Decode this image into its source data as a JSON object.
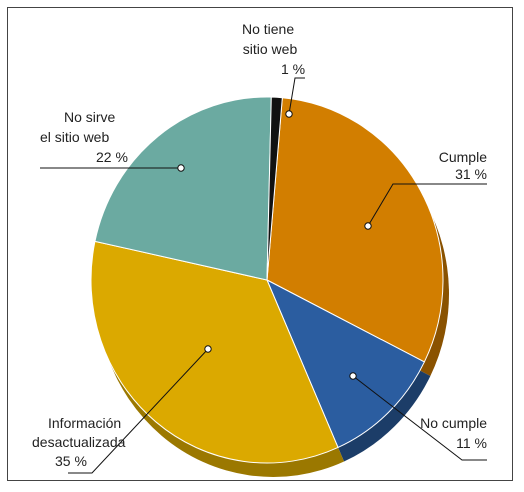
{
  "chart_data": {
    "type": "pie",
    "title": "",
    "slices": [
      {
        "label_lines": [
          "Cumple"
        ],
        "pct_label": "31 %",
        "value": 31,
        "color": "#D27E00",
        "dark": "#8A5200"
      },
      {
        "label_lines": [
          "No cumple"
        ],
        "pct_label": "11 %",
        "value": 11,
        "color": "#2B5DA0",
        "dark": "#1C3D68"
      },
      {
        "label_lines": [
          "Información",
          "desactualizada"
        ],
        "pct_label": "35 %",
        "value": 35,
        "color": "#DBA900",
        "dark": "#9B7800"
      },
      {
        "label_lines": [
          "No sirve",
          "el sitio web"
        ],
        "pct_label": "22 %",
        "value": 22,
        "color": "#6BAAA1",
        "dark": "#4A7D76"
      },
      {
        "label_lines": [
          "No tiene",
          "sitio web"
        ],
        "pct_label": "1 %",
        "value": 1,
        "color": "#111111",
        "dark": "#000000"
      }
    ],
    "legend": "none",
    "grid": false
  }
}
